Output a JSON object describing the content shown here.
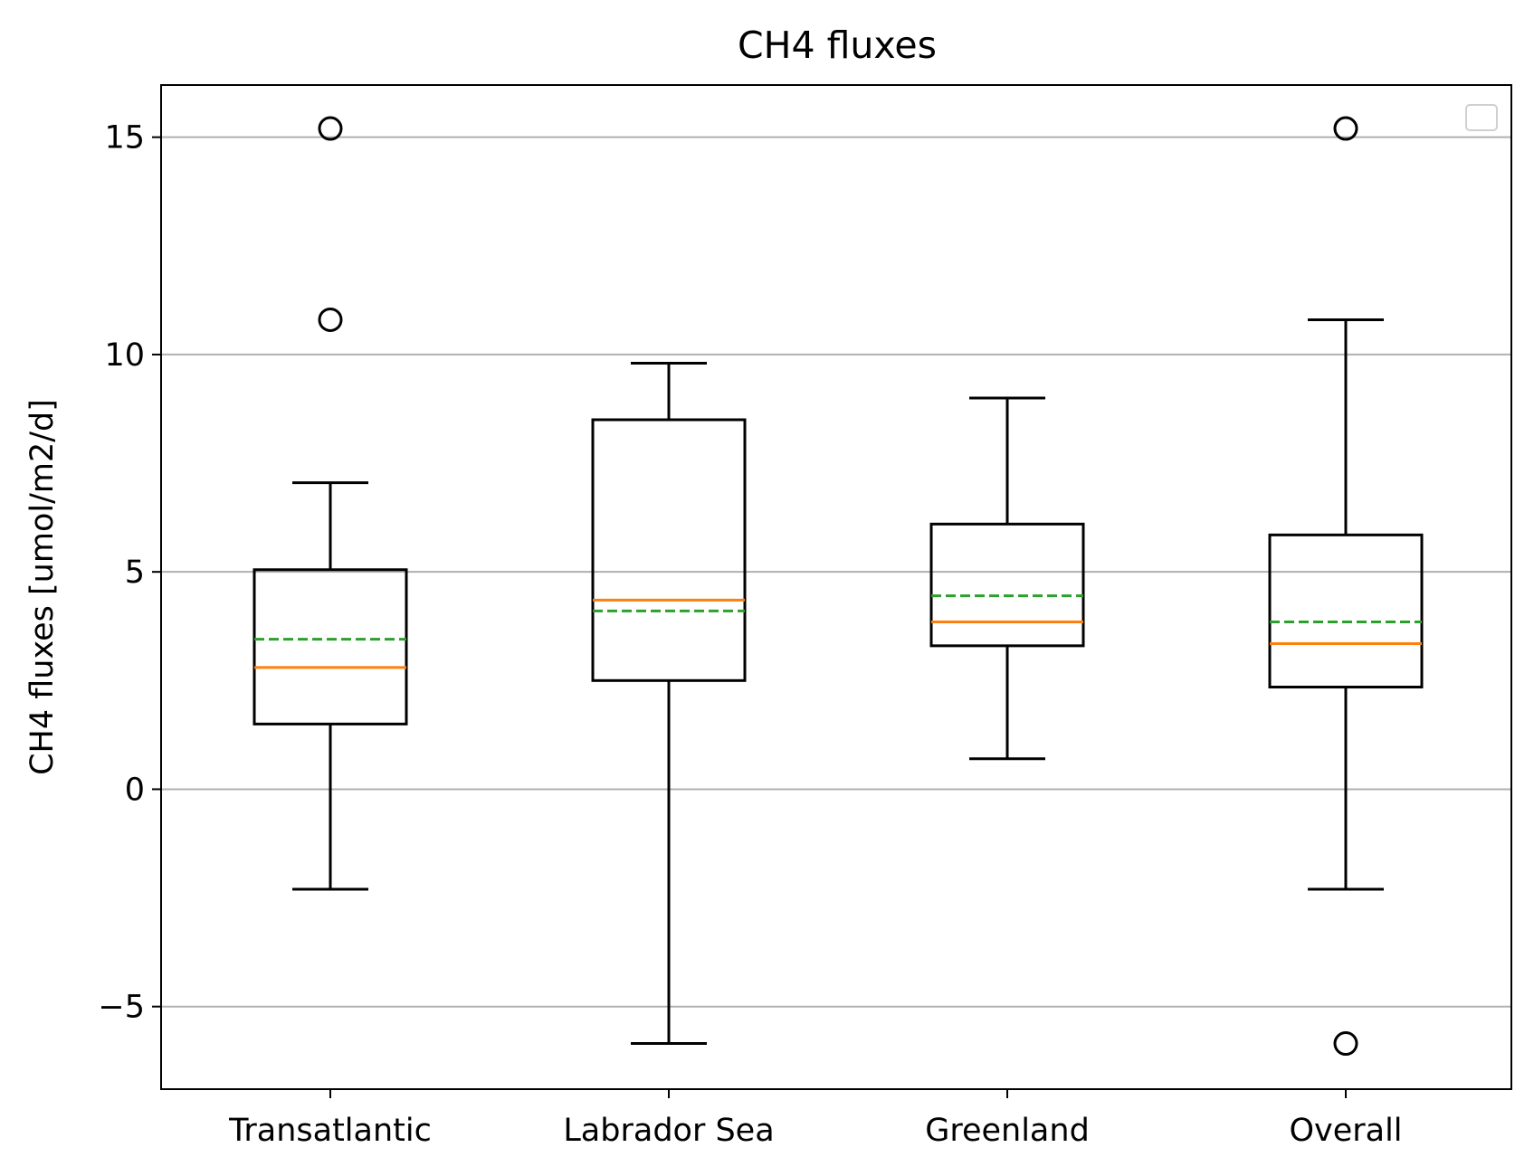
{
  "chart_data": {
    "type": "box",
    "title": "CH4 fluxes",
    "xlabel": "",
    "ylabel": "CH4 fluxes [umol/m2/d]",
    "ylim": [
      -6.9,
      16.2
    ],
    "yticks": [
      -5,
      0,
      5,
      10,
      15
    ],
    "ytick_labels": [
      "−5",
      "0",
      "5",
      "10",
      "15"
    ],
    "grid": {
      "y": true,
      "x": false
    },
    "legend": {
      "placement": "top-right",
      "entries": []
    },
    "categories": [
      "Transatlantic",
      "Labrador Sea",
      "Greenland",
      "Overall"
    ],
    "boxes": [
      {
        "category": "Transatlantic",
        "whisker_low": -2.3,
        "q1": 1.5,
        "median": 2.8,
        "mean": 3.45,
        "q3": 5.05,
        "whisker_high": 7.05,
        "outliers": [
          10.8,
          15.2
        ]
      },
      {
        "category": "Labrador Sea",
        "whisker_low": -5.85,
        "q1": 2.5,
        "median": 4.35,
        "mean": 4.1,
        "q3": 8.5,
        "whisker_high": 9.8,
        "outliers": []
      },
      {
        "category": "Greenland",
        "whisker_low": 0.7,
        "q1": 3.3,
        "median": 3.85,
        "mean": 4.45,
        "q3": 6.1,
        "whisker_high": 9.0,
        "outliers": []
      },
      {
        "category": "Overall",
        "whisker_low": -2.3,
        "q1": 2.35,
        "median": 3.35,
        "mean": 3.85,
        "q3": 5.85,
        "whisker_high": 10.8,
        "outliers": [
          15.2,
          -5.85
        ]
      }
    ],
    "colors": {
      "box": "#000000",
      "median": "#ff7f0e",
      "mean": "#2ca02c",
      "grid": "#b0b0b0"
    }
  }
}
